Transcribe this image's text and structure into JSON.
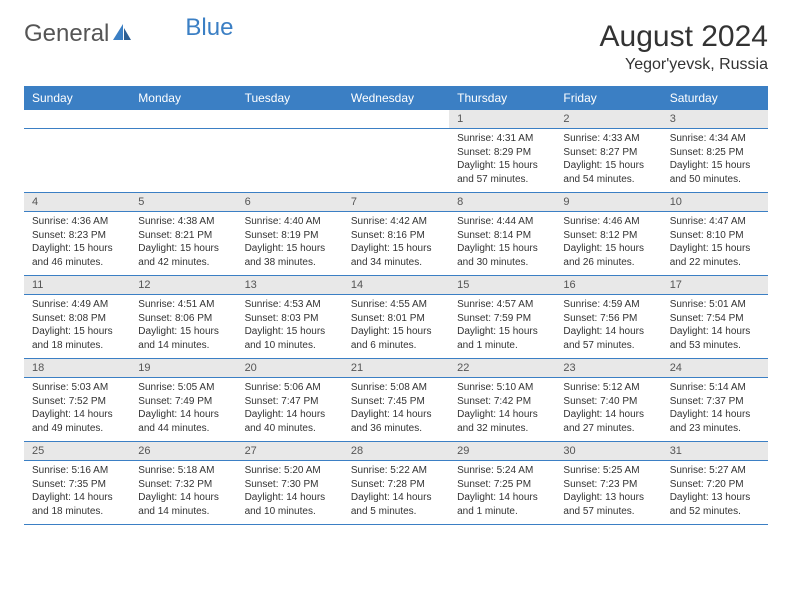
{
  "brand": {
    "name1": "General",
    "name2": "Blue"
  },
  "title": "August 2024",
  "location": "Yegor'yevsk, Russia",
  "colors": {
    "header_bg": "#3b7fc4",
    "daynum_bg": "#e8e8e8",
    "border": "#3b7fc4"
  },
  "day_headers": [
    "Sunday",
    "Monday",
    "Tuesday",
    "Wednesday",
    "Thursday",
    "Friday",
    "Saturday"
  ],
  "weeks": [
    {
      "nums": [
        "",
        "",
        "",
        "",
        "1",
        "2",
        "3"
      ],
      "cells": [
        null,
        null,
        null,
        null,
        {
          "sunrise": "Sunrise: 4:31 AM",
          "sunset": "Sunset: 8:29 PM",
          "day1": "Daylight: 15 hours",
          "day2": "and 57 minutes."
        },
        {
          "sunrise": "Sunrise: 4:33 AM",
          "sunset": "Sunset: 8:27 PM",
          "day1": "Daylight: 15 hours",
          "day2": "and 54 minutes."
        },
        {
          "sunrise": "Sunrise: 4:34 AM",
          "sunset": "Sunset: 8:25 PM",
          "day1": "Daylight: 15 hours",
          "day2": "and 50 minutes."
        }
      ]
    },
    {
      "nums": [
        "4",
        "5",
        "6",
        "7",
        "8",
        "9",
        "10"
      ],
      "cells": [
        {
          "sunrise": "Sunrise: 4:36 AM",
          "sunset": "Sunset: 8:23 PM",
          "day1": "Daylight: 15 hours",
          "day2": "and 46 minutes."
        },
        {
          "sunrise": "Sunrise: 4:38 AM",
          "sunset": "Sunset: 8:21 PM",
          "day1": "Daylight: 15 hours",
          "day2": "and 42 minutes."
        },
        {
          "sunrise": "Sunrise: 4:40 AM",
          "sunset": "Sunset: 8:19 PM",
          "day1": "Daylight: 15 hours",
          "day2": "and 38 minutes."
        },
        {
          "sunrise": "Sunrise: 4:42 AM",
          "sunset": "Sunset: 8:16 PM",
          "day1": "Daylight: 15 hours",
          "day2": "and 34 minutes."
        },
        {
          "sunrise": "Sunrise: 4:44 AM",
          "sunset": "Sunset: 8:14 PM",
          "day1": "Daylight: 15 hours",
          "day2": "and 30 minutes."
        },
        {
          "sunrise": "Sunrise: 4:46 AM",
          "sunset": "Sunset: 8:12 PM",
          "day1": "Daylight: 15 hours",
          "day2": "and 26 minutes."
        },
        {
          "sunrise": "Sunrise: 4:47 AM",
          "sunset": "Sunset: 8:10 PM",
          "day1": "Daylight: 15 hours",
          "day2": "and 22 minutes."
        }
      ]
    },
    {
      "nums": [
        "11",
        "12",
        "13",
        "14",
        "15",
        "16",
        "17"
      ],
      "cells": [
        {
          "sunrise": "Sunrise: 4:49 AM",
          "sunset": "Sunset: 8:08 PM",
          "day1": "Daylight: 15 hours",
          "day2": "and 18 minutes."
        },
        {
          "sunrise": "Sunrise: 4:51 AM",
          "sunset": "Sunset: 8:06 PM",
          "day1": "Daylight: 15 hours",
          "day2": "and 14 minutes."
        },
        {
          "sunrise": "Sunrise: 4:53 AM",
          "sunset": "Sunset: 8:03 PM",
          "day1": "Daylight: 15 hours",
          "day2": "and 10 minutes."
        },
        {
          "sunrise": "Sunrise: 4:55 AM",
          "sunset": "Sunset: 8:01 PM",
          "day1": "Daylight: 15 hours",
          "day2": "and 6 minutes."
        },
        {
          "sunrise": "Sunrise: 4:57 AM",
          "sunset": "Sunset: 7:59 PM",
          "day1": "Daylight: 15 hours",
          "day2": "and 1 minute."
        },
        {
          "sunrise": "Sunrise: 4:59 AM",
          "sunset": "Sunset: 7:56 PM",
          "day1": "Daylight: 14 hours",
          "day2": "and 57 minutes."
        },
        {
          "sunrise": "Sunrise: 5:01 AM",
          "sunset": "Sunset: 7:54 PM",
          "day1": "Daylight: 14 hours",
          "day2": "and 53 minutes."
        }
      ]
    },
    {
      "nums": [
        "18",
        "19",
        "20",
        "21",
        "22",
        "23",
        "24"
      ],
      "cells": [
        {
          "sunrise": "Sunrise: 5:03 AM",
          "sunset": "Sunset: 7:52 PM",
          "day1": "Daylight: 14 hours",
          "day2": "and 49 minutes."
        },
        {
          "sunrise": "Sunrise: 5:05 AM",
          "sunset": "Sunset: 7:49 PM",
          "day1": "Daylight: 14 hours",
          "day2": "and 44 minutes."
        },
        {
          "sunrise": "Sunrise: 5:06 AM",
          "sunset": "Sunset: 7:47 PM",
          "day1": "Daylight: 14 hours",
          "day2": "and 40 minutes."
        },
        {
          "sunrise": "Sunrise: 5:08 AM",
          "sunset": "Sunset: 7:45 PM",
          "day1": "Daylight: 14 hours",
          "day2": "and 36 minutes."
        },
        {
          "sunrise": "Sunrise: 5:10 AM",
          "sunset": "Sunset: 7:42 PM",
          "day1": "Daylight: 14 hours",
          "day2": "and 32 minutes."
        },
        {
          "sunrise": "Sunrise: 5:12 AM",
          "sunset": "Sunset: 7:40 PM",
          "day1": "Daylight: 14 hours",
          "day2": "and 27 minutes."
        },
        {
          "sunrise": "Sunrise: 5:14 AM",
          "sunset": "Sunset: 7:37 PM",
          "day1": "Daylight: 14 hours",
          "day2": "and 23 minutes."
        }
      ]
    },
    {
      "nums": [
        "25",
        "26",
        "27",
        "28",
        "29",
        "30",
        "31"
      ],
      "cells": [
        {
          "sunrise": "Sunrise: 5:16 AM",
          "sunset": "Sunset: 7:35 PM",
          "day1": "Daylight: 14 hours",
          "day2": "and 18 minutes."
        },
        {
          "sunrise": "Sunrise: 5:18 AM",
          "sunset": "Sunset: 7:32 PM",
          "day1": "Daylight: 14 hours",
          "day2": "and 14 minutes."
        },
        {
          "sunrise": "Sunrise: 5:20 AM",
          "sunset": "Sunset: 7:30 PM",
          "day1": "Daylight: 14 hours",
          "day2": "and 10 minutes."
        },
        {
          "sunrise": "Sunrise: 5:22 AM",
          "sunset": "Sunset: 7:28 PM",
          "day1": "Daylight: 14 hours",
          "day2": "and 5 minutes."
        },
        {
          "sunrise": "Sunrise: 5:24 AM",
          "sunset": "Sunset: 7:25 PM",
          "day1": "Daylight: 14 hours",
          "day2": "and 1 minute."
        },
        {
          "sunrise": "Sunrise: 5:25 AM",
          "sunset": "Sunset: 7:23 PM",
          "day1": "Daylight: 13 hours",
          "day2": "and 57 minutes."
        },
        {
          "sunrise": "Sunrise: 5:27 AM",
          "sunset": "Sunset: 7:20 PM",
          "day1": "Daylight: 13 hours",
          "day2": "and 52 minutes."
        }
      ]
    }
  ]
}
